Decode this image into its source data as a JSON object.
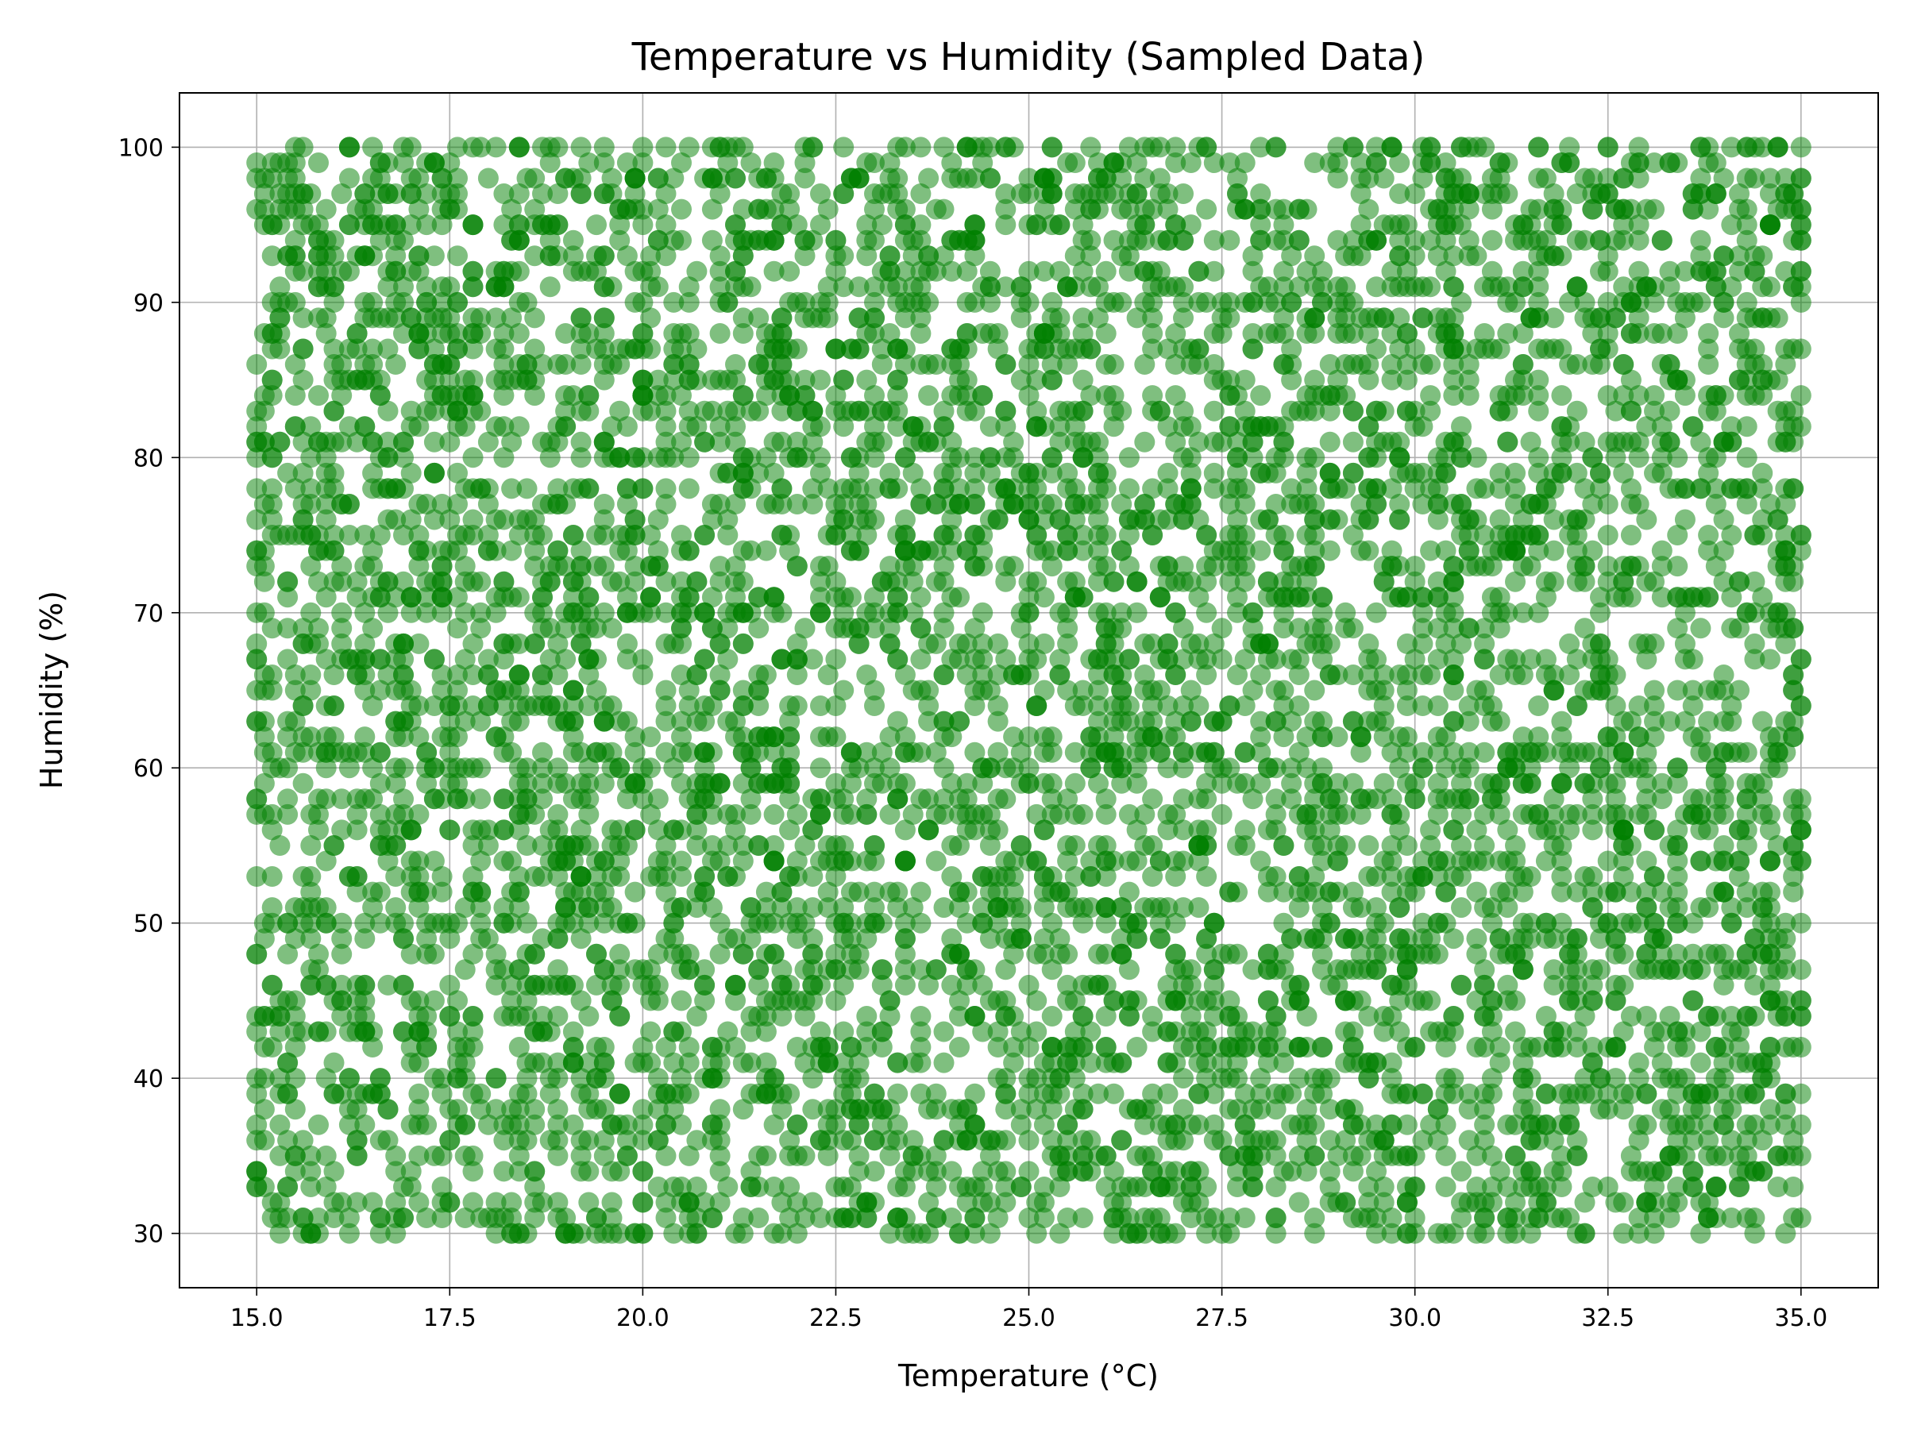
{
  "chart_data": {
    "type": "scatter",
    "title": "Temperature vs Humidity (Sampled Data)",
    "xlabel": "Temperature (°C)",
    "ylabel": "Humidity (%)",
    "xlim": [
      14.0,
      36.0
    ],
    "ylim": [
      26.5,
      103.5
    ],
    "xticks": [
      15.0,
      17.5,
      20.0,
      22.5,
      25.0,
      27.5,
      30.0,
      32.5,
      35.0
    ],
    "xtick_labels": [
      "15.0",
      "17.5",
      "20.0",
      "22.5",
      "25.0",
      "27.5",
      "30.0",
      "32.5",
      "35.0"
    ],
    "yticks": [
      30,
      40,
      50,
      60,
      70,
      80,
      90,
      100
    ],
    "ytick_labels": [
      "30",
      "40",
      "50",
      "60",
      "70",
      "80",
      "90",
      "100"
    ],
    "grid": true,
    "legend": false,
    "marker_color": "#008000",
    "marker_alpha": 0.5,
    "series": [
      {
        "x_range": [
          15.0,
          35.0
        ],
        "y_range": [
          30,
          100
        ],
        "x_resolution": 0.1,
        "y_resolution": 1,
        "description": "densely sampled uniform scatter, approx. 10000 points",
        "points": [
          [
            15.0,
            96
          ],
          [
            15.0,
            82
          ],
          [
            15.0,
            74
          ],
          [
            15.0,
            67
          ],
          [
            15.0,
            53
          ],
          [
            15.0,
            44
          ],
          [
            15.0,
            34
          ],
          [
            15.1,
            81
          ],
          [
            15.1,
            66
          ],
          [
            15.1,
            49
          ],
          [
            15.1,
            33
          ],
          [
            15.2,
            98
          ],
          [
            15.2,
            88
          ],
          [
            15.2,
            42
          ],
          [
            15.3,
            99
          ],
          [
            15.3,
            60
          ],
          [
            15.3,
            37
          ],
          [
            15.5,
            99
          ],
          [
            15.6,
            95
          ],
          [
            15.8,
            74
          ],
          [
            16.0,
            91
          ],
          [
            16.1,
            58
          ],
          [
            16.2,
            53
          ],
          [
            16.5,
            100
          ],
          [
            16.9,
            100
          ],
          [
            17.0,
            56
          ],
          [
            17.2,
            99
          ],
          [
            17.6,
            83
          ],
          [
            18.1,
            62
          ],
          [
            18.5,
            85
          ],
          [
            19.0,
            69
          ],
          [
            19.5,
            93
          ],
          [
            20.0,
            88
          ],
          [
            20.5,
            47
          ],
          [
            21.0,
            38
          ],
          [
            21.5,
            94
          ],
          [
            22.0,
            66
          ],
          [
            22.5,
            84
          ],
          [
            23.0,
            36
          ],
          [
            23.5,
            57
          ],
          [
            24.0,
            86
          ],
          [
            24.5,
            45
          ],
          [
            25.0,
            84
          ],
          [
            25.5,
            75
          ],
          [
            26.0,
            33
          ],
          [
            26.5,
            95
          ],
          [
            27.0,
            61
          ],
          [
            27.5,
            41
          ],
          [
            28.0,
            94
          ],
          [
            28.5,
            67
          ],
          [
            29.0,
            35
          ],
          [
            29.5,
            89
          ],
          [
            30.0,
            52
          ],
          [
            30.5,
            72
          ],
          [
            31.0,
            96
          ],
          [
            31.5,
            31
          ],
          [
            32.0,
            48
          ],
          [
            32.5,
            59
          ],
          [
            33.0,
            32
          ],
          [
            33.5,
            76
          ],
          [
            34.0,
            63
          ],
          [
            34.5,
            89
          ],
          [
            35.0,
            96
          ],
          [
            35.0,
            87
          ],
          [
            35.0,
            64
          ],
          [
            35.0,
            56
          ],
          [
            35.0,
            45
          ],
          [
            35.0,
            35
          ]
        ]
      }
    ]
  }
}
